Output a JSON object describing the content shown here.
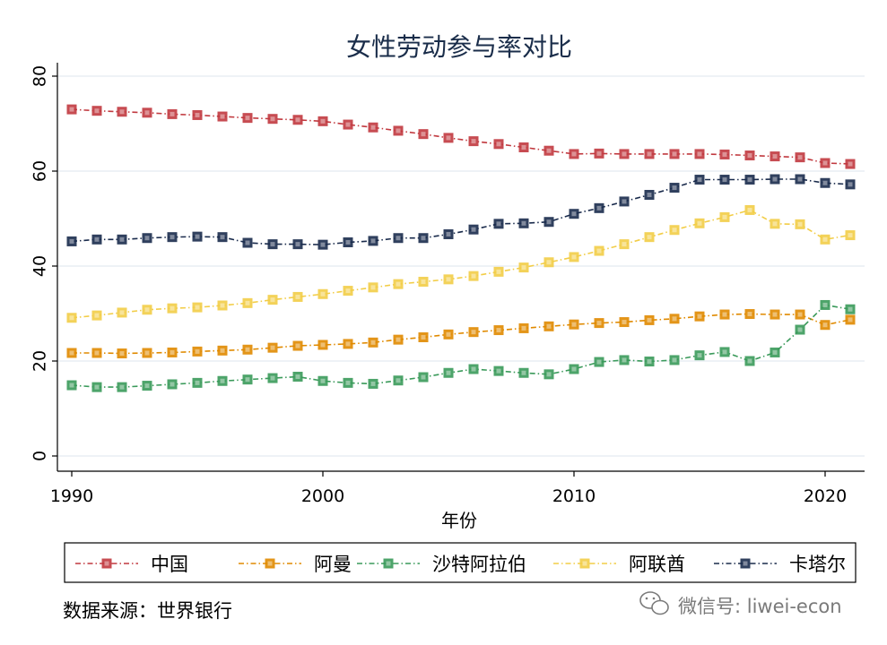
{
  "chart_data": {
    "type": "line",
    "title": "女性劳动参与率对比",
    "xlabel": "年份",
    "ylabel": "",
    "xlim": [
      1990,
      2021
    ],
    "ylim": [
      0,
      80
    ],
    "x_ticks": [
      1990,
      2000,
      2010,
      2020
    ],
    "y_ticks": [
      0,
      20,
      40,
      60,
      80
    ],
    "grid": true,
    "legend_position": "bottom",
    "x": [
      1990,
      1991,
      1992,
      1993,
      1994,
      1995,
      1996,
      1997,
      1998,
      1999,
      2000,
      2001,
      2002,
      2003,
      2004,
      2005,
      2006,
      2007,
      2008,
      2009,
      2010,
      2011,
      2012,
      2013,
      2014,
      2015,
      2016,
      2017,
      2018,
      2019,
      2020,
      2021
    ],
    "series": [
      {
        "name": "中国",
        "color": "#c1393f",
        "values": [
          73.0,
          72.7,
          72.5,
          72.3,
          72.0,
          71.8,
          71.5,
          71.2,
          71.0,
          70.8,
          70.5,
          69.8,
          69.2,
          68.5,
          67.8,
          67.0,
          66.3,
          65.7,
          65.0,
          64.3,
          63.6,
          63.7,
          63.6,
          63.6,
          63.6,
          63.6,
          63.5,
          63.3,
          63.1,
          62.9,
          61.7,
          61.5
        ]
      },
      {
        "name": "阿曼",
        "color": "#e08a00",
        "values": [
          21.7,
          21.7,
          21.6,
          21.7,
          21.8,
          22.0,
          22.2,
          22.4,
          22.8,
          23.2,
          23.4,
          23.6,
          23.9,
          24.5,
          25.0,
          25.6,
          26.1,
          26.5,
          26.9,
          27.3,
          27.7,
          28.0,
          28.2,
          28.6,
          28.9,
          29.4,
          29.8,
          29.9,
          29.8,
          29.8,
          27.6,
          28.7
        ]
      },
      {
        "name": "沙特阿拉伯",
        "color": "#3a9a5a",
        "values": [
          14.9,
          14.5,
          14.5,
          14.8,
          15.1,
          15.4,
          15.8,
          16.1,
          16.4,
          16.7,
          15.8,
          15.4,
          15.2,
          15.9,
          16.6,
          17.5,
          18.3,
          17.9,
          17.5,
          17.2,
          18.3,
          19.8,
          20.2,
          19.9,
          20.2,
          21.2,
          21.9,
          20.0,
          21.8,
          26.6,
          31.8,
          30.9
        ]
      },
      {
        "name": "阿联酋",
        "color": "#f2cd47",
        "values": [
          29.1,
          29.6,
          30.2,
          30.8,
          31.1,
          31.3,
          31.7,
          32.2,
          32.9,
          33.5,
          34.1,
          34.8,
          35.5,
          36.2,
          36.7,
          37.2,
          37.9,
          38.8,
          39.7,
          40.8,
          41.9,
          43.2,
          44.6,
          46.1,
          47.6,
          49.0,
          50.3,
          51.8,
          48.9,
          48.8,
          45.6,
          46.5
        ]
      },
      {
        "name": "卡塔尔",
        "color": "#1a2b4c",
        "values": [
          45.2,
          45.6,
          45.6,
          45.9,
          46.1,
          46.2,
          46.1,
          44.9,
          44.6,
          44.6,
          44.5,
          45.0,
          45.3,
          45.9,
          45.9,
          46.7,
          47.7,
          48.9,
          49.0,
          49.3,
          51.0,
          52.2,
          53.6,
          55.0,
          56.5,
          58.2,
          58.2,
          58.2,
          58.3,
          58.3,
          57.5,
          57.2
        ]
      }
    ]
  },
  "source_text": "数据来源：世界银行",
  "watermark_text": "微信号: liwei-econ",
  "colors": {
    "grid": "#e8eef3",
    "axis": "#000000",
    "title": "#1a2d4a"
  }
}
